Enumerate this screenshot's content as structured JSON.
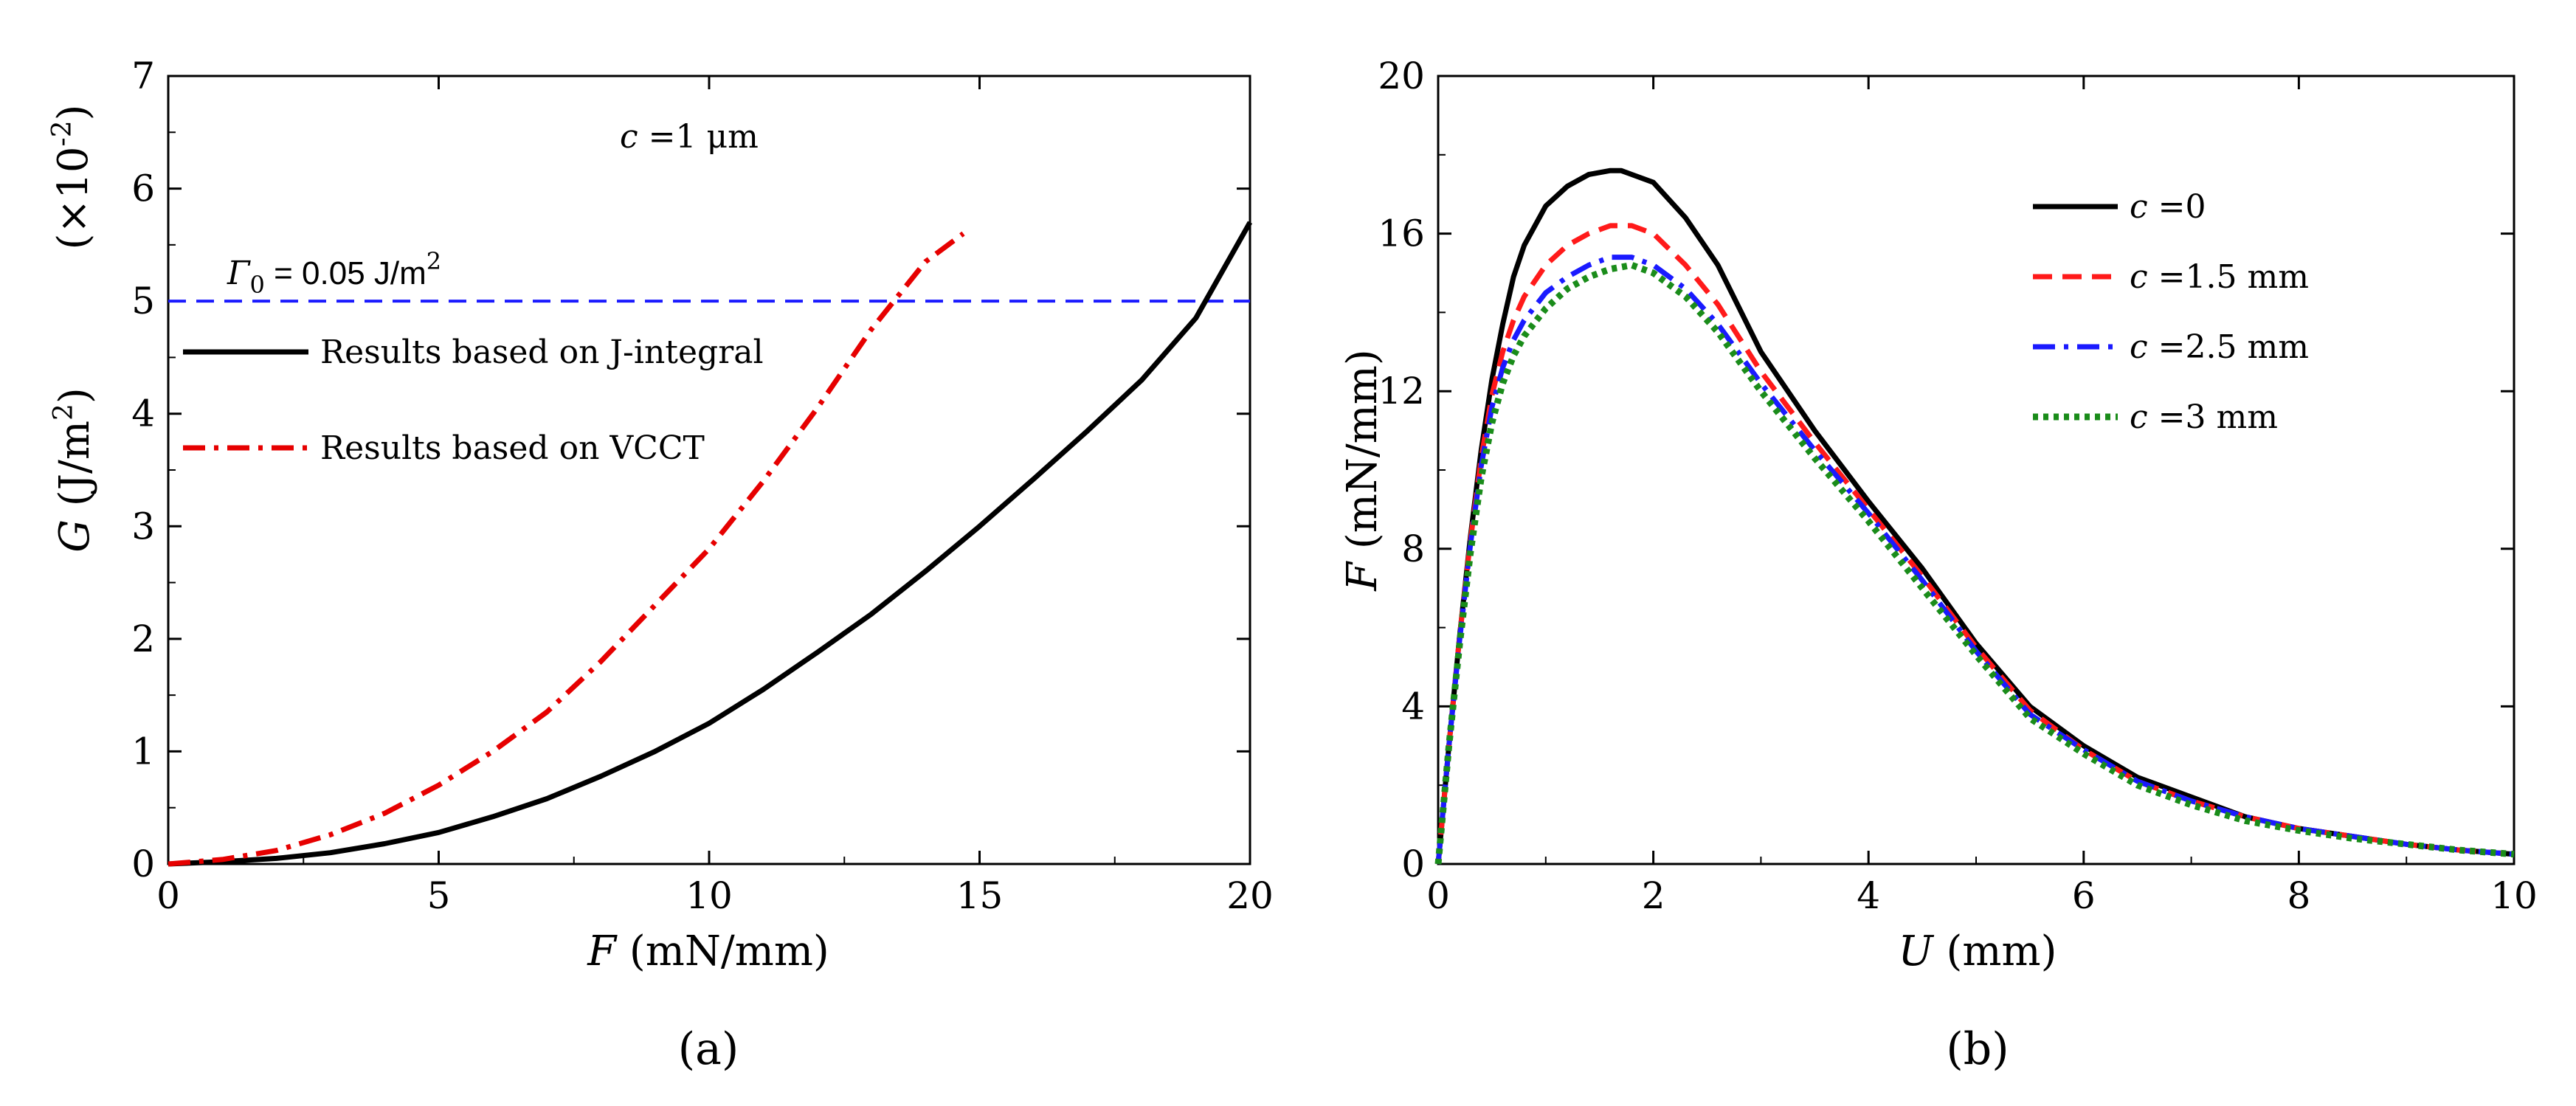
{
  "chart_data": [
    {
      "type": "line",
      "panel_label": "(a)",
      "xlabel_var": "F",
      "xlabel_unit": " (mN/mm)",
      "ylabel_var": "G",
      "ylabel_unit": " (J/m",
      "ylabel_sup": "2",
      "ylabel_close": ")",
      "y_scale_prefix": "(×10",
      "y_scale_exp": "-2",
      "y_scale_suffix": ")",
      "xlim": [
        0,
        20
      ],
      "ylim": [
        0,
        7
      ],
      "xticks": [
        0,
        5,
        10,
        15,
        20
      ],
      "yticks": [
        0,
        1,
        2,
        3,
        4,
        5,
        6,
        7
      ],
      "annotation_c_var": "c",
      "annotation_c_text": " =1 μm",
      "threshold": {
        "label_sym": "Γ",
        "label_sub": "0",
        "label_text": " = 0.05 J/m",
        "label_sup": "2",
        "value": 5,
        "color": "#1a1aff"
      },
      "series": [
        {
          "name": "Results based on J-integral",
          "color": "#000000",
          "style": "solid",
          "x": [
            0,
            1,
            2,
            3,
            4,
            5,
            6,
            7,
            8,
            9,
            10,
            11,
            12,
            13,
            14,
            15,
            16,
            17,
            18,
            19,
            20
          ],
          "y": [
            0,
            0.02,
            0.05,
            0.1,
            0.18,
            0.28,
            0.42,
            0.58,
            0.78,
            1.0,
            1.25,
            1.55,
            1.88,
            2.22,
            2.6,
            3.0,
            3.42,
            3.85,
            4.3,
            4.85,
            5.7
          ]
        },
        {
          "name": "Results based on VCCT",
          "color": "#e60000",
          "style": "dashdot",
          "x": [
            0,
            1,
            2,
            3,
            4,
            5,
            6,
            7,
            8,
            9,
            10,
            11,
            12,
            13,
            14,
            14.7
          ],
          "y": [
            0,
            0.04,
            0.12,
            0.26,
            0.45,
            0.7,
            1.0,
            1.35,
            1.8,
            2.3,
            2.8,
            3.4,
            4.05,
            4.75,
            5.35,
            5.6
          ]
        }
      ]
    },
    {
      "type": "line",
      "panel_label": "(b)",
      "xlabel_var": "U",
      "xlabel_unit": " (mm)",
      "ylabel_var": "F",
      "ylabel_unit": " (mN/mm)",
      "xlim": [
        0,
        10
      ],
      "ylim": [
        0,
        20
      ],
      "xticks": [
        0,
        2,
        4,
        6,
        8,
        10
      ],
      "yticks": [
        0,
        4,
        8,
        12,
        16,
        20
      ],
      "series": [
        {
          "name_var": "c",
          "name": " =0",
          "color": "#000000",
          "style": "solid",
          "x": [
            0,
            0.1,
            0.2,
            0.3,
            0.4,
            0.5,
            0.6,
            0.7,
            0.8,
            1.0,
            1.2,
            1.4,
            1.6,
            1.7,
            1.8,
            2.0,
            2.3,
            2.6,
            3.0,
            3.5,
            4.0,
            4.5,
            5.0,
            5.5,
            6.0,
            6.5,
            7.0,
            7.5,
            8.0,
            8.5,
            9.0,
            9.5,
            10.0
          ],
          "y": [
            0,
            3.0,
            5.8,
            8.3,
            10.5,
            12.3,
            13.7,
            14.9,
            15.7,
            16.7,
            17.2,
            17.5,
            17.6,
            17.6,
            17.5,
            17.3,
            16.4,
            15.2,
            13.0,
            11.0,
            9.2,
            7.5,
            5.6,
            4.0,
            3.0,
            2.2,
            1.7,
            1.2,
            0.9,
            0.7,
            0.5,
            0.35,
            0.25
          ]
        },
        {
          "name_var": "c",
          "name": " =1.5 mm",
          "color": "#ff1a1a",
          "style": "dashed",
          "x": [
            0,
            0.1,
            0.2,
            0.3,
            0.4,
            0.5,
            0.6,
            0.7,
            0.8,
            1.0,
            1.2,
            1.4,
            1.6,
            1.8,
            2.0,
            2.3,
            2.6,
            3.0,
            3.5,
            4.0,
            4.5,
            5.0,
            5.5,
            6.0,
            6.5,
            7.0,
            7.5,
            8.0,
            8.5,
            9.0,
            9.5,
            10.0
          ],
          "y": [
            0,
            3.0,
            5.8,
            8.2,
            10.3,
            11.9,
            13.0,
            13.8,
            14.4,
            15.2,
            15.7,
            16.0,
            16.2,
            16.2,
            16.0,
            15.2,
            14.2,
            12.5,
            10.7,
            9.0,
            7.3,
            5.5,
            3.9,
            2.9,
            2.1,
            1.6,
            1.2,
            0.9,
            0.7,
            0.5,
            0.35,
            0.25
          ]
        },
        {
          "name_var": "c",
          "name": " =2.5 mm",
          "color": "#1a1aff",
          "style": "dashdot",
          "x": [
            0,
            0.1,
            0.2,
            0.3,
            0.4,
            0.5,
            0.6,
            0.7,
            0.8,
            1.0,
            1.2,
            1.4,
            1.6,
            1.8,
            2.0,
            2.3,
            2.6,
            3.0,
            3.5,
            4.0,
            4.5,
            5.0,
            5.5,
            6.0,
            6.5,
            7.0,
            7.5,
            8.0,
            8.5,
            9.0,
            9.5,
            10.0
          ],
          "y": [
            0,
            3.0,
            5.7,
            8.1,
            10.1,
            11.6,
            12.6,
            13.3,
            13.8,
            14.5,
            14.9,
            15.2,
            15.4,
            15.4,
            15.2,
            14.6,
            13.7,
            12.2,
            10.5,
            8.9,
            7.2,
            5.4,
            3.8,
            2.9,
            2.1,
            1.6,
            1.2,
            0.9,
            0.7,
            0.5,
            0.35,
            0.25
          ]
        },
        {
          "name_var": "c",
          "name": " =3 mm",
          "color": "#1a8c1a",
          "style": "dotted",
          "x": [
            0,
            0.1,
            0.2,
            0.3,
            0.4,
            0.5,
            0.6,
            0.7,
            0.8,
            1.0,
            1.2,
            1.4,
            1.6,
            1.8,
            2.0,
            2.3,
            2.6,
            3.0,
            3.5,
            4.0,
            4.5,
            5.0,
            5.5,
            6.0,
            6.5,
            7.0,
            7.5,
            8.0,
            8.5,
            9.0,
            9.5,
            10.0
          ],
          "y": [
            0,
            3.0,
            5.6,
            7.9,
            9.8,
            11.2,
            12.2,
            12.9,
            13.4,
            14.1,
            14.6,
            14.9,
            15.1,
            15.2,
            15.0,
            14.4,
            13.5,
            12.0,
            10.3,
            8.7,
            7.0,
            5.3,
            3.7,
            2.8,
            2.0,
            1.5,
            1.1,
            0.85,
            0.65,
            0.5,
            0.35,
            0.25
          ]
        }
      ]
    }
  ]
}
